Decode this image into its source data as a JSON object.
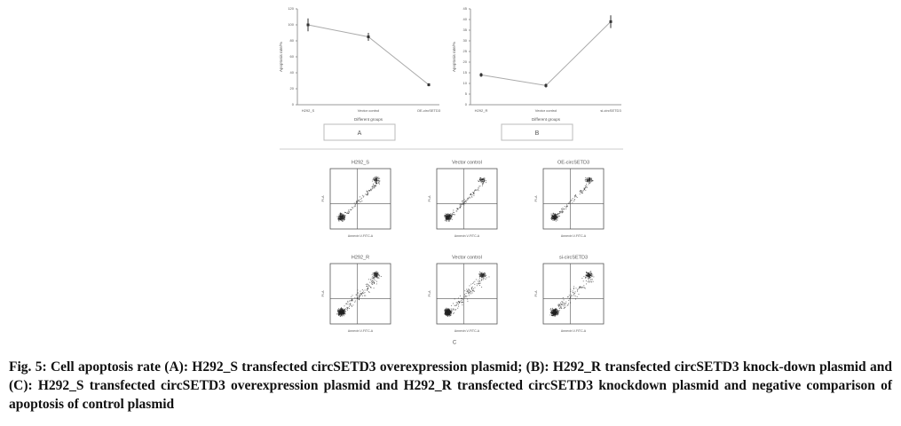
{
  "figure": {
    "charts": [
      {
        "type": "line",
        "label": "A",
        "categories": [
          "H292_S",
          "Vector control",
          "OE-circSETD3"
        ],
        "values": [
          100,
          85,
          25
        ],
        "errors": [
          8,
          5,
          2
        ],
        "ylim": [
          0,
          120
        ],
        "yticks": [
          0,
          20,
          40,
          60,
          80,
          100,
          120
        ],
        "xlabel": "Different groups",
        "ylabel": "Apoptosis rate/%"
      },
      {
        "type": "line",
        "label": "B",
        "categories": [
          "H292_R",
          "Vector control",
          "si-circSETD3"
        ],
        "values": [
          14,
          9,
          39
        ],
        "errors": [
          1,
          1,
          3
        ],
        "ylim": [
          0,
          45
        ],
        "yticks": [
          0,
          5,
          10,
          15,
          20,
          25,
          30,
          35,
          40,
          45
        ],
        "xlabel": "Different groups",
        "ylabel": "Apoptosis rate/%"
      }
    ],
    "flow": {
      "label": "C",
      "xaxis": "Annexin V-FITC-A",
      "yaxis": "PI-A",
      "panels": [
        "H292_S",
        "Vector control",
        "OE-circSETD3",
        "H292_R",
        "Vector control",
        "si-circSETD3"
      ]
    },
    "caption": "Fig. 5: Cell apoptosis rate (A): H292_S transfected circSETD3 overexpression plasmid; (B): H292_R transfected circSETD3 knock-down plasmid and (C): H292_S transfected circSETD3 overexpression plasmid and H292_R transfected circSETD3 knockdown plasmid and negative comparison of apoptosis of control plasmid"
  }
}
